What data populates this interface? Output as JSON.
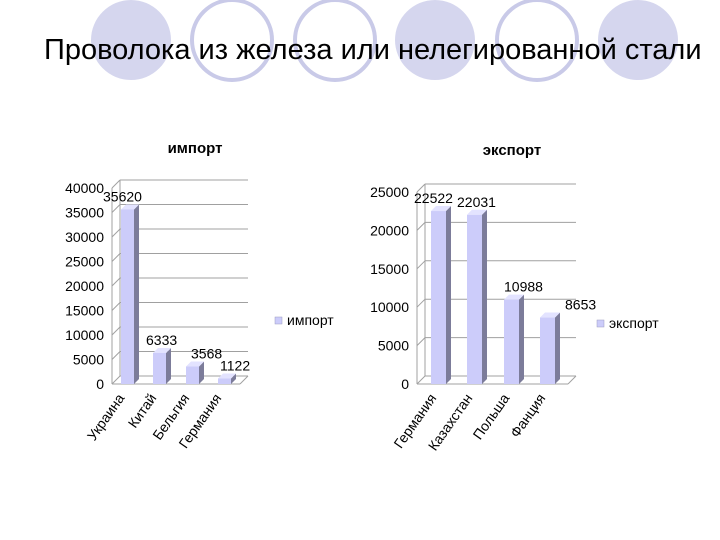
{
  "slide": {
    "title": "Проволока из железа или нелегированной стали"
  },
  "colors": {
    "circle_fill": "#d5d6ee",
    "circle_stroke": "#c9cae8",
    "bar_front": "#ccccfa",
    "bar_side": "#7c7c9a",
    "bar_top": "#e3e3ff",
    "grid": "#a0a0a0"
  },
  "chart_data": [
    {
      "type": "bar",
      "title": "импорт",
      "categories": [
        "Украина",
        "Китай",
        "Бельгия",
        "Германия"
      ],
      "series": [
        {
          "name": "импорт",
          "values": [
            35620,
            6333,
            3568,
            1122
          ]
        }
      ],
      "value_labels": [
        "35620",
        "6333",
        "3568",
        "1122"
      ],
      "yticks": [
        "0",
        "5000",
        "10000",
        "15000",
        "20000",
        "25000",
        "30000",
        "35000",
        "40000"
      ],
      "ylim": [
        0,
        40000
      ],
      "grid": true,
      "legend": "right"
    },
    {
      "type": "bar",
      "title": "экспорт",
      "categories": [
        "Германия",
        "Казахстан",
        "Польша",
        "Фанция"
      ],
      "series": [
        {
          "name": "экспорт",
          "values": [
            22522,
            22031,
            10988,
            8653
          ]
        }
      ],
      "value_labels": [
        "22522",
        "22031",
        "10988",
        "8653"
      ],
      "yticks": [
        "0",
        "5000",
        "10000",
        "15000",
        "20000",
        "25000"
      ],
      "ylim": [
        0,
        25000
      ],
      "grid": true,
      "legend": "right"
    }
  ]
}
